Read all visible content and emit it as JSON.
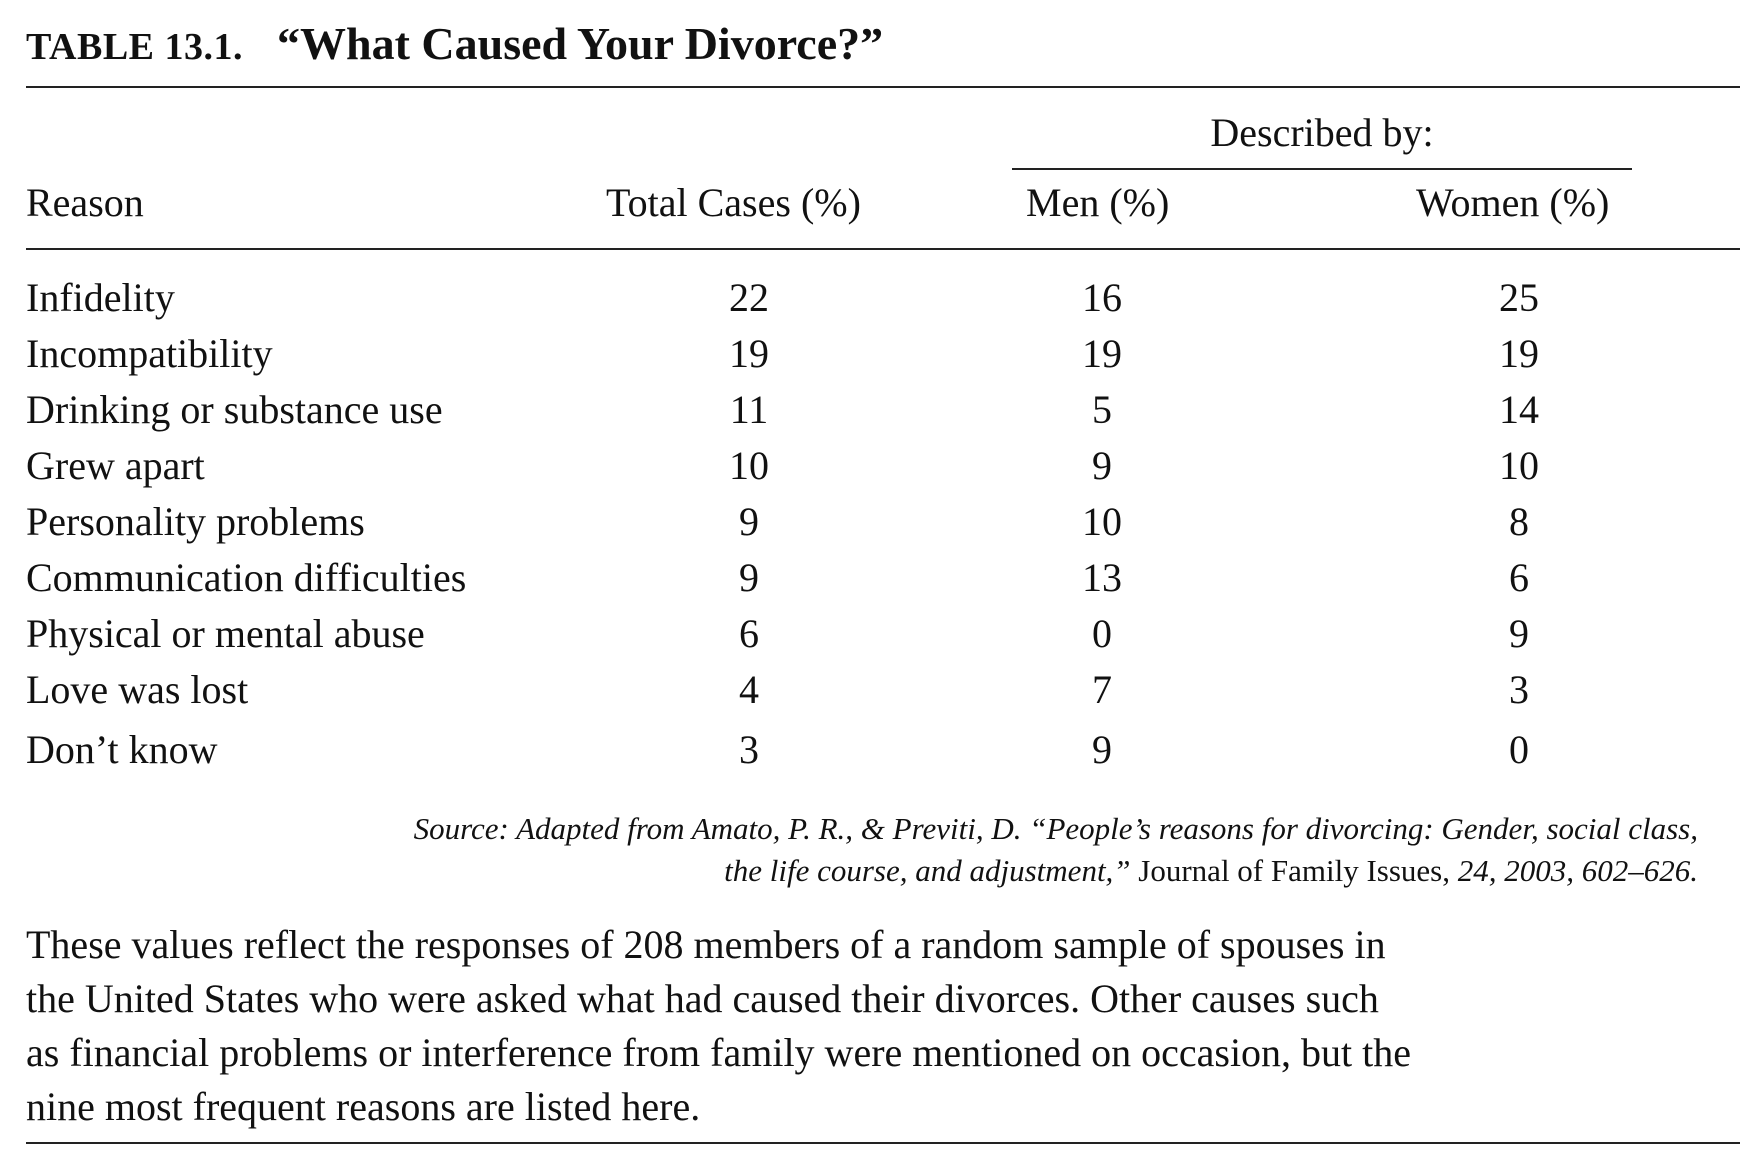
{
  "table": {
    "label": "TABLE 13.1.",
    "title": "“What Caused Your Divorce?”",
    "group_header": "Described by:",
    "columns": [
      "Reason",
      "Total Cases (%)",
      "Men (%)",
      "Women (%)"
    ],
    "rows": [
      {
        "reason": "Infidelity",
        "total": "22",
        "men": "16",
        "women": "25"
      },
      {
        "reason": "Incompatibility",
        "total": "19",
        "men": "19",
        "women": "19"
      },
      {
        "reason": "Drinking or substance use",
        "total": "11",
        "men": "5",
        "women": "14"
      },
      {
        "reason": "Grew apart",
        "total": "10",
        "men": "9",
        "women": "10"
      },
      {
        "reason": "Personality problems",
        "total": "9",
        "men": "10",
        "women": "8"
      },
      {
        "reason": "Communication difficulties",
        "total": "9",
        "men": "13",
        "women": "6"
      },
      {
        "reason": "Physical or mental abuse",
        "total": "6",
        "men": "0",
        "women": "9"
      },
      {
        "reason": "Love was lost",
        "total": "4",
        "men": "7",
        "women": "3"
      },
      {
        "reason": "Don’t know",
        "total": "3",
        "men": "9",
        "women": "0"
      }
    ]
  },
  "source": {
    "line1": "Source: Adapted from Amato, P. R., & Previti, D. “People’s reasons for divorcing: Gender, social class,",
    "line2_italic": "the life course, and adjustment,”",
    "line2_journal": " Journal of Family Issues, ",
    "line2_end": "24, 2003, 602–626."
  },
  "paragraph": {
    "lines": [
      "These values reflect the responses of 208 members of a random sample of spouses in",
      "the United States who were asked what had caused their divorces. Other causes such",
      "as financial problems or interference from family were mentioned on occasion, but the",
      "nine most frequent reasons are listed here."
    ]
  }
}
